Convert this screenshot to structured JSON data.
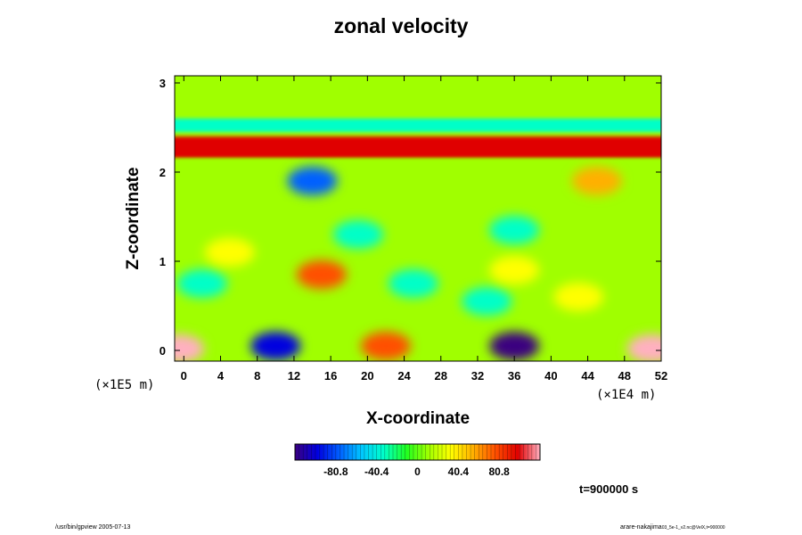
{
  "chart_data": {
    "type": "heatmap",
    "title": "zonal velocity",
    "xlabel": "X-coordinate",
    "ylabel": "Z-coordinate",
    "x_ticks": [
      0,
      4,
      8,
      12,
      16,
      20,
      24,
      28,
      32,
      36,
      40,
      44,
      48,
      52
    ],
    "y_ticks": [
      0,
      1,
      2,
      3
    ],
    "xlim": [
      -1,
      52
    ],
    "ylim": [
      -0.12,
      3.08
    ],
    "x_scale_label": "(×1E4 m)",
    "z_scale_label": "(×1E5 m)",
    "colorbar": {
      "range": [
        -121.2,
        121.2
      ],
      "ticks": [
        -80.8,
        -40.4,
        0,
        40.4,
        80.8
      ],
      "tick_labels": [
        "-80.8",
        "-40.4",
        "0",
        "40.4",
        "80.8"
      ],
      "colors": [
        "#3a0080",
        "#0000e0",
        "#0060ff",
        "#00c8ff",
        "#00ffc8",
        "#20ff20",
        "#a0ff00",
        "#ffff00",
        "#ffb000",
        "#ff5000",
        "#e00000",
        "#ffb0c0"
      ]
    },
    "bands": [
      {
        "z_range": [
          2.6,
          3.08
        ],
        "value": 0
      },
      {
        "z_range": [
          2.45,
          2.6
        ],
        "value": -30
      },
      {
        "z_range": [
          2.15,
          2.4
        ],
        "value": 85
      },
      {
        "z_range": [
          2.0,
          2.15
        ],
        "value": 5
      }
    ],
    "features": [
      {
        "x": -0.5,
        "z": 0.02,
        "value": 120
      },
      {
        "x": 51,
        "z": 0.02,
        "value": 120
      },
      {
        "x": 10,
        "z": 0.05,
        "value": -95
      },
      {
        "x": 22,
        "z": 0.05,
        "value": 70
      },
      {
        "x": 36,
        "z": 0.05,
        "value": -105
      },
      {
        "x": 15,
        "z": 0.85,
        "value": 80
      },
      {
        "x": 14,
        "z": 1.9,
        "value": -70
      },
      {
        "x": 45,
        "z": 1.9,
        "value": 60
      },
      {
        "x": 25,
        "z": 0.75,
        "value": -35
      },
      {
        "x": 2,
        "z": 0.75,
        "value": -35
      },
      {
        "x": 19,
        "z": 1.3,
        "value": -40
      },
      {
        "x": 36,
        "z": 1.35,
        "value": -30
      },
      {
        "x": 33,
        "z": 0.55,
        "value": -25
      },
      {
        "x": 36,
        "z": 0.9,
        "value": 35
      },
      {
        "x": 43,
        "z": 0.6,
        "value": 30
      },
      {
        "x": 5,
        "z": 1.1,
        "value": 25
      }
    ]
  },
  "time_label": "t=900000 s",
  "footer": {
    "left": "/usr/bin/gpview 2005-07-13",
    "right_main": "arare-nakajima",
    "right_sub": "03_5e-1_v2.nc@VelX,t=900000"
  }
}
